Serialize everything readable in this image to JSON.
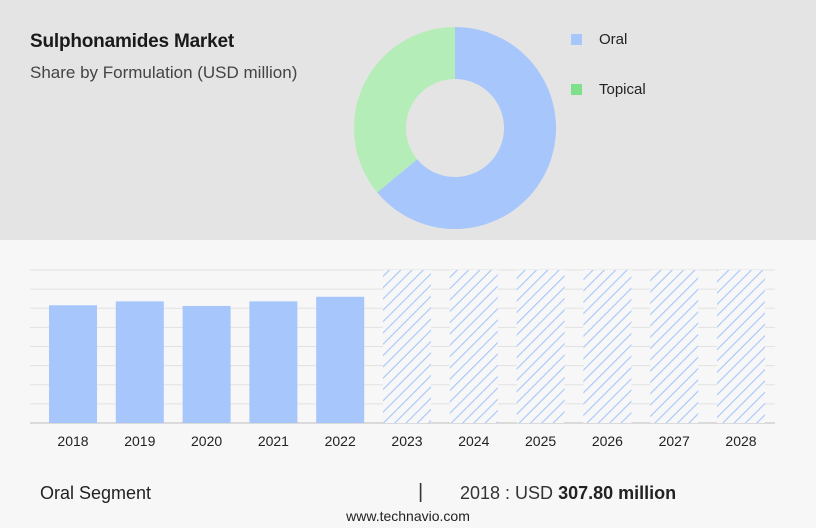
{
  "header": {
    "title": "Sulphonamides Market",
    "subtitle": "Share by Formulation (USD million)"
  },
  "chart_data": [
    {
      "type": "pie",
      "variant": "donut",
      "labels": [
        "Oral",
        "Topical"
      ],
      "values": [
        64,
        36
      ],
      "colors": [
        "#a7c6fb",
        "#b5edb8"
      ],
      "legend_colors": [
        "#a7c6fb",
        "#7ee08a"
      ],
      "legend_position": "top-right"
    },
    {
      "type": "bar",
      "categories": [
        "2018",
        "2019",
        "2020",
        "2021",
        "2022",
        "2023",
        "2024",
        "2025",
        "2026",
        "2027",
        "2028"
      ],
      "values": [
        307.8,
        318,
        306,
        318,
        330,
        null,
        null,
        null,
        null,
        null,
        null
      ],
      "forecast_categories": [
        "2023",
        "2024",
        "2025",
        "2026",
        "2027",
        "2028"
      ],
      "ylim": [
        0,
        400
      ],
      "grid": true,
      "bar_color": "#a7c6fb",
      "forecast_color": "#a7c6fb"
    }
  ],
  "footer": {
    "segment": "Oral Segment",
    "divider": "|",
    "year_label": "2018 : USD",
    "amount": "307.80 million",
    "source": "www.technavio.com"
  }
}
